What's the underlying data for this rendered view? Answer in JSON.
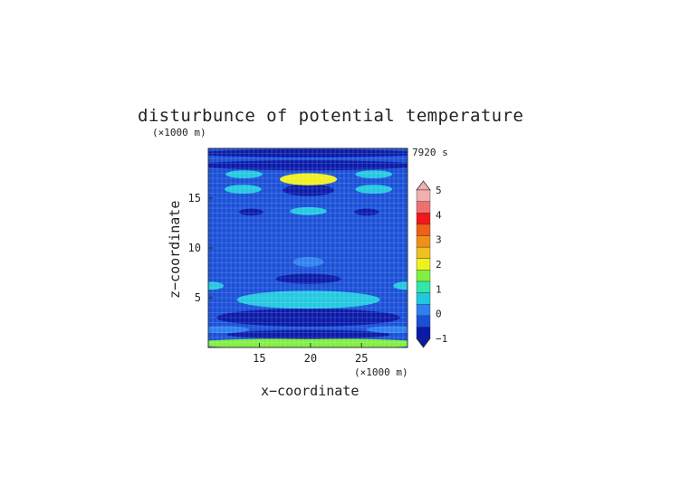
{
  "chart_data": {
    "type": "heatmap",
    "title": "disturbunce of potential temperature",
    "time_label": "7920 s",
    "xlabel": "x−coordinate",
    "ylabel": "z−coordinate",
    "x_units": "(×1000 m)",
    "y_units": "(×1000 m)",
    "xlim": [
      10,
      29.5
    ],
    "ylim": [
      0,
      20
    ],
    "x_ticks": [
      15,
      20,
      25
    ],
    "y_ticks": [
      5,
      10,
      15
    ],
    "grid": true,
    "colorbar": {
      "levels": [
        -1,
        -0.5,
        0,
        0.5,
        1,
        1.5,
        2,
        2.5,
        3,
        3.5,
        4,
        4.5,
        5
      ],
      "tick_labels": [
        "−1",
        "0",
        "1",
        "2",
        "3",
        "4",
        "5"
      ],
      "colors": [
        "#0a1aa8",
        "#1a50d8",
        "#2e80f0",
        "#22c8e0",
        "#30e8a8",
        "#80f040",
        "#f0f020",
        "#f0c020",
        "#f09018",
        "#f06018",
        "#f01818",
        "#f07070",
        "#f0b0b0"
      ],
      "extend": "both"
    },
    "features": [
      {
        "x": 19.8,
        "z": 0.4,
        "half_width": 12,
        "half_height": 0.5,
        "value": 1.5
      },
      {
        "x": 19.8,
        "z": 1.3,
        "half_width": 8,
        "half_height": 0.45,
        "value": -0.6
      },
      {
        "x": 19.8,
        "z": 3.0,
        "half_width": 9,
        "half_height": 0.9,
        "value": -0.9
      },
      {
        "x": 19.8,
        "z": 4.8,
        "half_width": 7,
        "half_height": 0.9,
        "value": 0.6
      },
      {
        "x": 19.8,
        "z": 6.9,
        "half_width": 3.2,
        "half_height": 0.5,
        "value": -0.9
      },
      {
        "x": 19.8,
        "z": 8.6,
        "half_width": 1.5,
        "half_height": 0.5,
        "value": 0.4
      },
      {
        "x": 19.8,
        "z": 10.5,
        "half_width": 6,
        "half_height": 0.5,
        "value": -0.5
      },
      {
        "x": 19.8,
        "z": 13.7,
        "half_width": 1.8,
        "half_height": 0.4,
        "value": 0.5
      },
      {
        "x": 19.8,
        "z": 15.8,
        "half_width": 2.5,
        "half_height": 0.6,
        "value": -0.9
      },
      {
        "x": 19.8,
        "z": 16.9,
        "half_width": 2.8,
        "half_height": 0.6,
        "value": 2.0
      },
      {
        "x": 19.8,
        "z": 18.3,
        "half_width": 11,
        "half_height": 0.5,
        "value": -0.7
      },
      {
        "x": 19.8,
        "z": 19.5,
        "half_width": 11,
        "half_height": 0.4,
        "value": -0.9
      },
      {
        "x": 13.5,
        "z": 17.4,
        "half_width": 1.8,
        "half_height": 0.4,
        "value": 0.5
      },
      {
        "x": 26.2,
        "z": 17.4,
        "half_width": 1.8,
        "half_height": 0.4,
        "value": 0.5
      },
      {
        "x": 13.4,
        "z": 15.9,
        "half_width": 1.8,
        "half_height": 0.45,
        "value": 0.6
      },
      {
        "x": 26.2,
        "z": 15.9,
        "half_width": 1.8,
        "half_height": 0.45,
        "value": 0.6
      },
      {
        "x": 14.2,
        "z": 13.6,
        "half_width": 1.2,
        "half_height": 0.35,
        "value": -0.9
      },
      {
        "x": 25.5,
        "z": 13.6,
        "half_width": 1.2,
        "half_height": 0.35,
        "value": -0.9
      },
      {
        "x": 10.3,
        "z": 6.2,
        "half_width": 1.2,
        "half_height": 0.4,
        "value": 0.5
      },
      {
        "x": 29.3,
        "z": 6.2,
        "half_width": 1.2,
        "half_height": 0.4,
        "value": 0.5
      },
      {
        "x": 11.5,
        "z": 1.8,
        "half_width": 2.5,
        "half_height": 0.35,
        "value": 0.4
      },
      {
        "x": 28.0,
        "z": 1.8,
        "half_width": 2.5,
        "half_height": 0.35,
        "value": 0.4
      }
    ]
  }
}
